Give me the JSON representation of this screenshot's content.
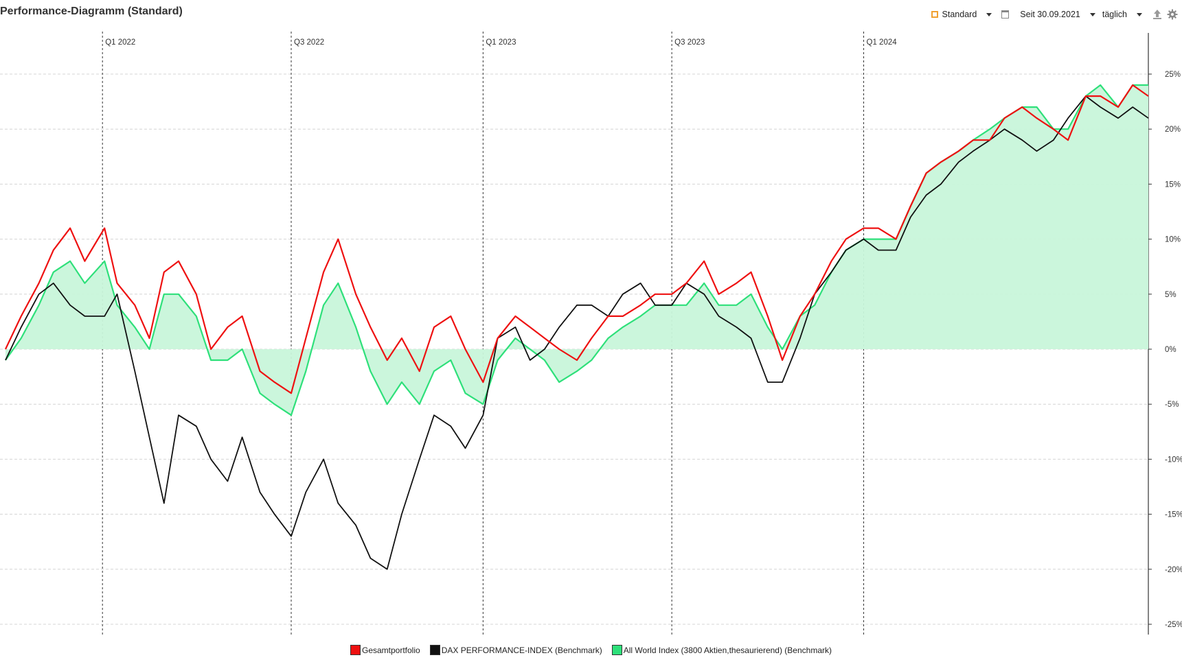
{
  "header": {
    "title": "Performance-Diagramm (Standard)"
  },
  "toolbar": {
    "view_label": "Standard",
    "period_label": "Seit 30.09.2021",
    "interval_label": "täglich",
    "accent_color": "#f0a030"
  },
  "chart_data": {
    "type": "line",
    "x_range": [
      "2021-09-30",
      "2024-09-30"
    ],
    "ylim": [
      -25,
      25
    ],
    "ylabel": "",
    "xlabel": "",
    "y_ticks": [
      25,
      20,
      15,
      10,
      5,
      0,
      -5,
      -10,
      -15,
      -20,
      -25
    ],
    "y_tick_labels": [
      "25%",
      "20%",
      "15%",
      "10%",
      "5%",
      "0%",
      "-5%",
      "-10%",
      "-15%",
      "-20%",
      "-25%"
    ],
    "x_markers": [
      {
        "date": "2022-01-01",
        "label": "Q1 2022"
      },
      {
        "date": "2022-07-01",
        "label": "Q3 2022"
      },
      {
        "date": "2023-01-01",
        "label": "Q1 2023"
      },
      {
        "date": "2023-07-01",
        "label": "Q3 2023"
      },
      {
        "date": "2024-01-01",
        "label": "Q1 2024"
      }
    ],
    "grid": true,
    "legend_position": "bottom-center",
    "series": [
      {
        "name": "Gesamtportfolio",
        "color": "#ee1111",
        "dates": [
          "2021-09-30",
          "2021-10-15",
          "2021-11-01",
          "2021-11-15",
          "2021-12-01",
          "2021-12-15",
          "2022-01-03",
          "2022-01-15",
          "2022-02-01",
          "2022-02-15",
          "2022-03-01",
          "2022-03-15",
          "2022-04-01",
          "2022-04-15",
          "2022-05-01",
          "2022-05-15",
          "2022-06-01",
          "2022-06-15",
          "2022-07-01",
          "2022-07-15",
          "2022-08-01",
          "2022-08-15",
          "2022-09-01",
          "2022-09-15",
          "2022-10-01",
          "2022-10-15",
          "2022-11-01",
          "2022-11-15",
          "2022-12-01",
          "2022-12-15",
          "2023-01-01",
          "2023-01-15",
          "2023-02-01",
          "2023-02-15",
          "2023-03-01",
          "2023-03-15",
          "2023-04-01",
          "2023-04-15",
          "2023-05-01",
          "2023-05-15",
          "2023-06-01",
          "2023-06-15",
          "2023-07-01",
          "2023-07-15",
          "2023-08-01",
          "2023-08-15",
          "2023-09-01",
          "2023-09-15",
          "2023-10-01",
          "2023-10-15",
          "2023-11-01",
          "2023-11-15",
          "2023-12-01",
          "2023-12-15",
          "2024-01-01",
          "2024-01-15",
          "2024-02-01",
          "2024-02-15",
          "2024-03-01",
          "2024-03-15",
          "2024-04-01",
          "2024-04-15",
          "2024-05-01",
          "2024-05-15",
          "2024-06-01",
          "2024-06-15",
          "2024-07-01",
          "2024-07-15",
          "2024-08-01",
          "2024-08-15",
          "2024-09-01",
          "2024-09-15",
          "2024-09-30"
        ],
        "values": [
          0,
          3,
          6,
          9,
          11,
          8,
          11,
          6,
          4,
          1,
          7,
          8,
          5,
          0,
          2,
          3,
          -2,
          -3,
          -4,
          1,
          7,
          10,
          5,
          2,
          -1,
          1,
          -2,
          2,
          3,
          0,
          -3,
          1,
          3,
          2,
          1,
          0,
          -1,
          1,
          3,
          3,
          4,
          5,
          5,
          6,
          8,
          5,
          6,
          7,
          3,
          -1,
          3,
          5,
          8,
          10,
          11,
          11,
          10,
          13,
          16,
          17,
          18,
          19,
          19,
          21,
          22,
          21,
          20,
          19,
          23,
          23,
          22,
          24,
          23
        ]
      },
      {
        "name": "DAX PERFORMANCE-INDEX (Benchmark)",
        "color": "#111111",
        "dates": [
          "2021-09-30",
          "2021-10-15",
          "2021-11-01",
          "2021-11-15",
          "2021-12-01",
          "2021-12-15",
          "2022-01-03",
          "2022-01-15",
          "2022-02-01",
          "2022-02-15",
          "2022-03-01",
          "2022-03-15",
          "2022-04-01",
          "2022-04-15",
          "2022-05-01",
          "2022-05-15",
          "2022-06-01",
          "2022-06-15",
          "2022-07-01",
          "2022-07-15",
          "2022-08-01",
          "2022-08-15",
          "2022-09-01",
          "2022-09-15",
          "2022-10-01",
          "2022-10-15",
          "2022-11-01",
          "2022-11-15",
          "2022-12-01",
          "2022-12-15",
          "2023-01-01",
          "2023-01-15",
          "2023-02-01",
          "2023-02-15",
          "2023-03-01",
          "2023-03-15",
          "2023-04-01",
          "2023-04-15",
          "2023-05-01",
          "2023-05-15",
          "2023-06-01",
          "2023-06-15",
          "2023-07-01",
          "2023-07-15",
          "2023-08-01",
          "2023-08-15",
          "2023-09-01",
          "2023-09-15",
          "2023-10-01",
          "2023-10-15",
          "2023-11-01",
          "2023-11-15",
          "2023-12-01",
          "2023-12-15",
          "2024-01-01",
          "2024-01-15",
          "2024-02-01",
          "2024-02-15",
          "2024-03-01",
          "2024-03-15",
          "2024-04-01",
          "2024-04-15",
          "2024-05-01",
          "2024-05-15",
          "2024-06-01",
          "2024-06-15",
          "2024-07-01",
          "2024-07-15",
          "2024-08-01",
          "2024-08-15",
          "2024-09-01",
          "2024-09-15",
          "2024-09-30"
        ],
        "values": [
          -1,
          2,
          5,
          6,
          4,
          3,
          3,
          5,
          -2,
          -8,
          -14,
          -6,
          -7,
          -10,
          -12,
          -8,
          -13,
          -15,
          -17,
          -13,
          -10,
          -14,
          -16,
          -19,
          -20,
          -15,
          -10,
          -6,
          -7,
          -9,
          -6,
          1,
          2,
          -1,
          0,
          2,
          4,
          4,
          3,
          5,
          6,
          4,
          4,
          6,
          5,
          3,
          2,
          1,
          -3,
          -3,
          1,
          5,
          7,
          9,
          10,
          9,
          9,
          12,
          14,
          15,
          17,
          18,
          19,
          20,
          19,
          18,
          19,
          21,
          23,
          22,
          21,
          22,
          21
        ]
      },
      {
        "name": "All World Index (3800 Aktien,thesaurierend) (Benchmark)",
        "color": "#2ee07a",
        "fill": "#c8f5da",
        "dates": [
          "2021-09-30",
          "2021-10-15",
          "2021-11-01",
          "2021-11-15",
          "2021-12-01",
          "2021-12-15",
          "2022-01-03",
          "2022-01-15",
          "2022-02-01",
          "2022-02-15",
          "2022-03-01",
          "2022-03-15",
          "2022-04-01",
          "2022-04-15",
          "2022-05-01",
          "2022-05-15",
          "2022-06-01",
          "2022-06-15",
          "2022-07-01",
          "2022-07-15",
          "2022-08-01",
          "2022-08-15",
          "2022-09-01",
          "2022-09-15",
          "2022-10-01",
          "2022-10-15",
          "2022-11-01",
          "2022-11-15",
          "2022-12-01",
          "2022-12-15",
          "2023-01-01",
          "2023-01-15",
          "2023-02-01",
          "2023-02-15",
          "2023-03-01",
          "2023-03-15",
          "2023-04-01",
          "2023-04-15",
          "2023-05-01",
          "2023-05-15",
          "2023-06-01",
          "2023-06-15",
          "2023-07-01",
          "2023-07-15",
          "2023-08-01",
          "2023-08-15",
          "2023-09-01",
          "2023-09-15",
          "2023-10-01",
          "2023-10-15",
          "2023-11-01",
          "2023-11-15",
          "2023-12-01",
          "2023-12-15",
          "2024-01-01",
          "2024-01-15",
          "2024-02-01",
          "2024-02-15",
          "2024-03-01",
          "2024-03-15",
          "2024-04-01",
          "2024-04-15",
          "2024-05-01",
          "2024-05-15",
          "2024-06-01",
          "2024-06-15",
          "2024-07-01",
          "2024-07-15",
          "2024-08-01",
          "2024-08-15",
          "2024-09-01",
          "2024-09-15",
          "2024-09-30"
        ],
        "values": [
          -1,
          1,
          4,
          7,
          8,
          6,
          8,
          4,
          2,
          0,
          5,
          5,
          3,
          -1,
          -1,
          0,
          -4,
          -5,
          -6,
          -2,
          4,
          6,
          2,
          -2,
          -5,
          -3,
          -5,
          -2,
          -1,
          -4,
          -5,
          -1,
          1,
          0,
          -1,
          -3,
          -2,
          -1,
          1,
          2,
          3,
          4,
          4,
          4,
          6,
          4,
          4,
          5,
          2,
          0,
          3,
          4,
          7,
          9,
          10,
          10,
          10,
          13,
          16,
          17,
          18,
          19,
          20,
          21,
          22,
          22,
          20,
          20,
          23,
          24,
          22,
          24,
          24
        ]
      }
    ]
  }
}
